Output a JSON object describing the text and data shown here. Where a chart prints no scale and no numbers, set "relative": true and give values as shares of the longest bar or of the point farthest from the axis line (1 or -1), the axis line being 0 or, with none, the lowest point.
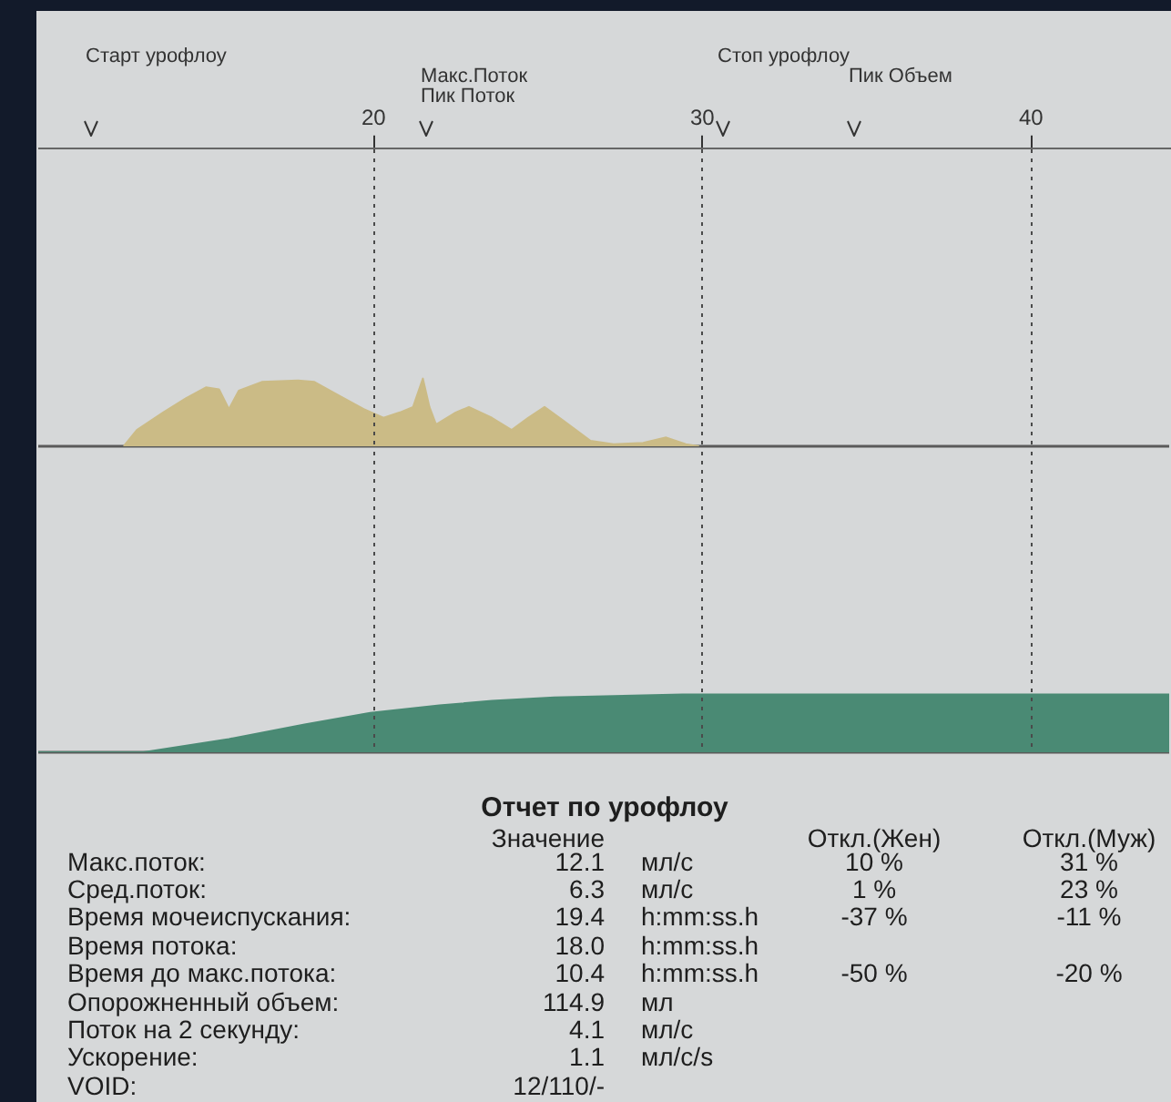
{
  "chart_data": [
    {
      "type": "area",
      "relative": true,
      "color": "#cbbb86",
      "grid": "x",
      "xlim": [
        9.8,
        44.2
      ],
      "xticks": [
        20,
        30,
        40
      ],
      "x": [
        12.4,
        12.8,
        13.6,
        14.3,
        14.9,
        15.3,
        15.6,
        15.9,
        16.6,
        17.7,
        18.2,
        18.9,
        19.7,
        20.3,
        20.8,
        21.2,
        21.5,
        21.7,
        21.9,
        22.5,
        22.9,
        23.6,
        24.2,
        24.7,
        25.2,
        25.8,
        26.6,
        27.3,
        28.2,
        28.9,
        29.5,
        29.9
      ],
      "values": [
        0,
        0.24,
        0.5,
        0.71,
        0.87,
        0.84,
        0.55,
        0.82,
        0.95,
        0.97,
        0.95,
        0.76,
        0.55,
        0.42,
        0.5,
        0.58,
        1,
        0.58,
        0.32,
        0.5,
        0.58,
        0.42,
        0.24,
        0.42,
        0.58,
        0.37,
        0.08,
        0.03,
        0.05,
        0.13,
        0.03,
        0
      ],
      "annotations": [
        "Старт урофлоу",
        "Макс.Поток",
        "Пик Поток",
        "Стоп урофлоу",
        "Пик Объем"
      ]
    },
    {
      "type": "area",
      "relative": true,
      "color": "#4a8a74",
      "grid": "x",
      "xlim": [
        9.8,
        44.2
      ],
      "xticks": [
        20,
        30,
        40
      ],
      "tick_labels": false,
      "x": [
        9.8,
        13.0,
        15.6,
        17.9,
        19.9,
        22.0,
        23.6,
        25.5,
        29.4,
        34.0,
        44.2
      ],
      "values": [
        0,
        0,
        0.23,
        0.48,
        0.68,
        0.81,
        0.89,
        0.95,
        1,
        1,
        1
      ]
    },
    {
      "type": "other",
      "title": "Отчет по урофлоу",
      "annotations": [
        "Значение",
        "Откл.(Жен)",
        "Откл.(Муж)",
        "Макс.поток:",
        "12.1",
        "мл/с",
        "10 %",
        "31 %",
        "Сред.поток:",
        "6.3",
        "мл/с",
        "1 %",
        "23 %",
        "Время мочеиспускания:",
        "19.4",
        "h:mm:ss.h",
        "-37 %",
        "-11 %",
        "Время потока:",
        "18.0",
        "h:mm:ss.h",
        "Время до макс.потока:",
        "10.4",
        "h:mm:ss.h",
        "-50 %",
        "-20 %",
        "Опорожненный объем:",
        "114.9",
        "мл",
        "Поток на 2 секунду:",
        "4.1",
        "мл/с",
        "Ускорение:",
        "1.1",
        "мл/c/s",
        "VOID:",
        "12/110/-"
      ]
    }
  ]
}
